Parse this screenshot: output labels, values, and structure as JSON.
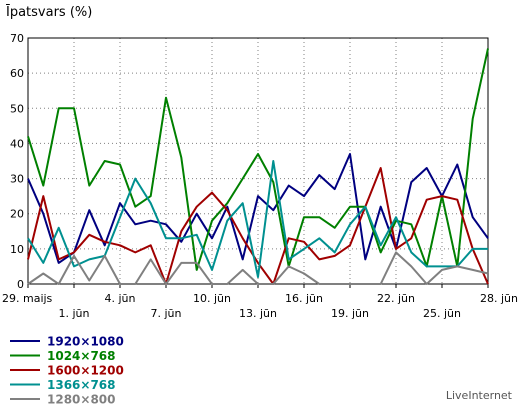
{
  "chart_data": {
    "type": "line",
    "ylabel": "Īpatsvars (%)",
    "ylim": [
      0,
      70
    ],
    "yticks": [
      0,
      10,
      20,
      30,
      40,
      50,
      60,
      70
    ],
    "x_count": 31,
    "x_labels_row1": [
      {
        "i": 0,
        "label": "29. maijs"
      },
      {
        "i": 6,
        "label": "4. jūn"
      },
      {
        "i": 12,
        "label": "10. jūn"
      },
      {
        "i": 18,
        "label": "16. jūn"
      },
      {
        "i": 24,
        "label": "22. jūn"
      },
      {
        "i": 30,
        "label": "28. jūn"
      }
    ],
    "x_labels_row2": [
      {
        "i": 3,
        "label": "1. jūn"
      },
      {
        "i": 9,
        "label": "7. jūn"
      },
      {
        "i": 15,
        "label": "13. jūn"
      },
      {
        "i": 21,
        "label": "19. jūn"
      },
      {
        "i": 27,
        "label": "25. jūn"
      }
    ],
    "grid": true,
    "legend_position": "bottom-left",
    "series": [
      {
        "name": "1920×1080",
        "color": "#000080",
        "values": [
          30,
          20,
          6,
          9,
          21,
          11,
          23,
          17,
          18,
          17,
          12,
          20,
          13,
          22,
          7,
          25,
          21,
          28,
          25,
          31,
          27,
          37,
          7,
          22,
          10,
          29,
          33,
          25,
          34,
          19,
          13
        ]
      },
      {
        "name": "1024×768",
        "color": "#008000",
        "values": [
          42,
          28,
          50,
          50,
          28,
          35,
          34,
          22,
          25,
          53,
          36,
          4,
          18,
          23,
          30,
          37,
          29,
          5,
          19,
          19,
          16,
          22,
          22,
          9,
          18,
          17,
          5,
          25,
          5,
          47,
          67
        ]
      },
      {
        "name": "1600×1200",
        "color": "#a00000",
        "values": [
          7,
          25,
          7,
          9,
          14,
          12,
          11,
          9,
          11,
          0,
          15,
          22,
          26,
          21,
          13,
          6,
          0,
          13,
          12,
          7,
          8,
          11,
          22,
          33,
          10,
          13,
          24,
          25,
          24,
          10,
          0
        ]
      },
      {
        "name": "1366×768",
        "color": "#009090",
        "values": [
          13,
          6,
          16,
          5,
          7,
          8,
          19,
          30,
          23,
          13,
          13,
          14,
          4,
          18,
          23,
          2,
          35,
          7,
          10,
          13,
          9,
          17,
          22,
          11,
          19,
          9,
          5,
          5,
          5,
          10,
          10
        ]
      },
      {
        "name": "1280×800",
        "color": "#808080",
        "values": [
          0,
          3,
          0,
          8,
          1,
          8,
          0,
          0,
          7,
          0,
          6,
          6,
          0,
          0,
          4,
          0,
          0,
          5,
          3,
          0,
          0,
          0,
          0,
          0,
          9,
          5,
          0,
          4,
          5,
          4,
          3
        ]
      }
    ]
  },
  "credit": "LiveInternet"
}
